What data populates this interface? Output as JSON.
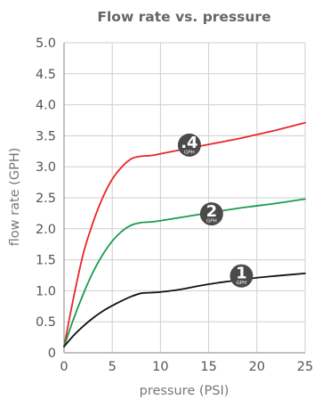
{
  "chart_data": {
    "type": "line",
    "title": "Flow rate vs. pressure",
    "xlabel": "pressure (PSI)",
    "ylabel": "flow rate (GPH)",
    "xlim": [
      0,
      25
    ],
    "ylim": [
      0,
      5
    ],
    "x_ticks": [
      "0",
      "5",
      "10",
      "15",
      "20",
      "25"
    ],
    "y_ticks": [
      "0",
      "0.5",
      "1.0",
      "1.5",
      "2.0",
      "2.5",
      "3.0",
      "3.5",
      "4.0",
      "4.5",
      "5.0"
    ],
    "grid": true,
    "series": [
      {
        "name": ".4",
        "unit": "GPH",
        "color": "#e8262c",
        "label_at": [
          13.0,
          3.35
        ],
        "x": [
          0,
          1,
          2,
          3,
          4,
          5,
          6,
          7,
          8,
          9,
          10,
          12,
          14,
          16,
          18,
          20,
          22,
          25
        ],
        "y": [
          0.1,
          0.9,
          1.6,
          2.1,
          2.5,
          2.8,
          3.0,
          3.13,
          3.17,
          3.18,
          3.21,
          3.27,
          3.33,
          3.39,
          3.45,
          3.52,
          3.59,
          3.71
        ]
      },
      {
        "name": "2",
        "unit": "GPH",
        "color": "#1a9b4f",
        "label_at": [
          15.3,
          2.24
        ],
        "x": [
          0,
          1,
          2,
          3,
          4,
          5,
          6,
          7,
          8,
          9,
          10,
          12,
          14,
          16,
          18,
          20,
          22,
          25
        ],
        "y": [
          0.1,
          0.55,
          0.95,
          1.3,
          1.58,
          1.8,
          1.96,
          2.06,
          2.1,
          2.11,
          2.13,
          2.18,
          2.23,
          2.28,
          2.33,
          2.37,
          2.41,
          2.48
        ]
      },
      {
        "name": "1",
        "unit": "GPH",
        "color": "#111111",
        "label_at": [
          18.4,
          1.24
        ],
        "x": [
          0,
          1,
          2,
          3,
          4,
          5,
          6,
          7,
          8,
          9,
          10,
          12,
          14,
          16,
          18,
          20,
          22,
          25
        ],
        "y": [
          0.1,
          0.28,
          0.43,
          0.56,
          0.67,
          0.76,
          0.84,
          0.91,
          0.96,
          0.97,
          0.98,
          1.02,
          1.08,
          1.13,
          1.17,
          1.21,
          1.24,
          1.28
        ]
      }
    ]
  }
}
